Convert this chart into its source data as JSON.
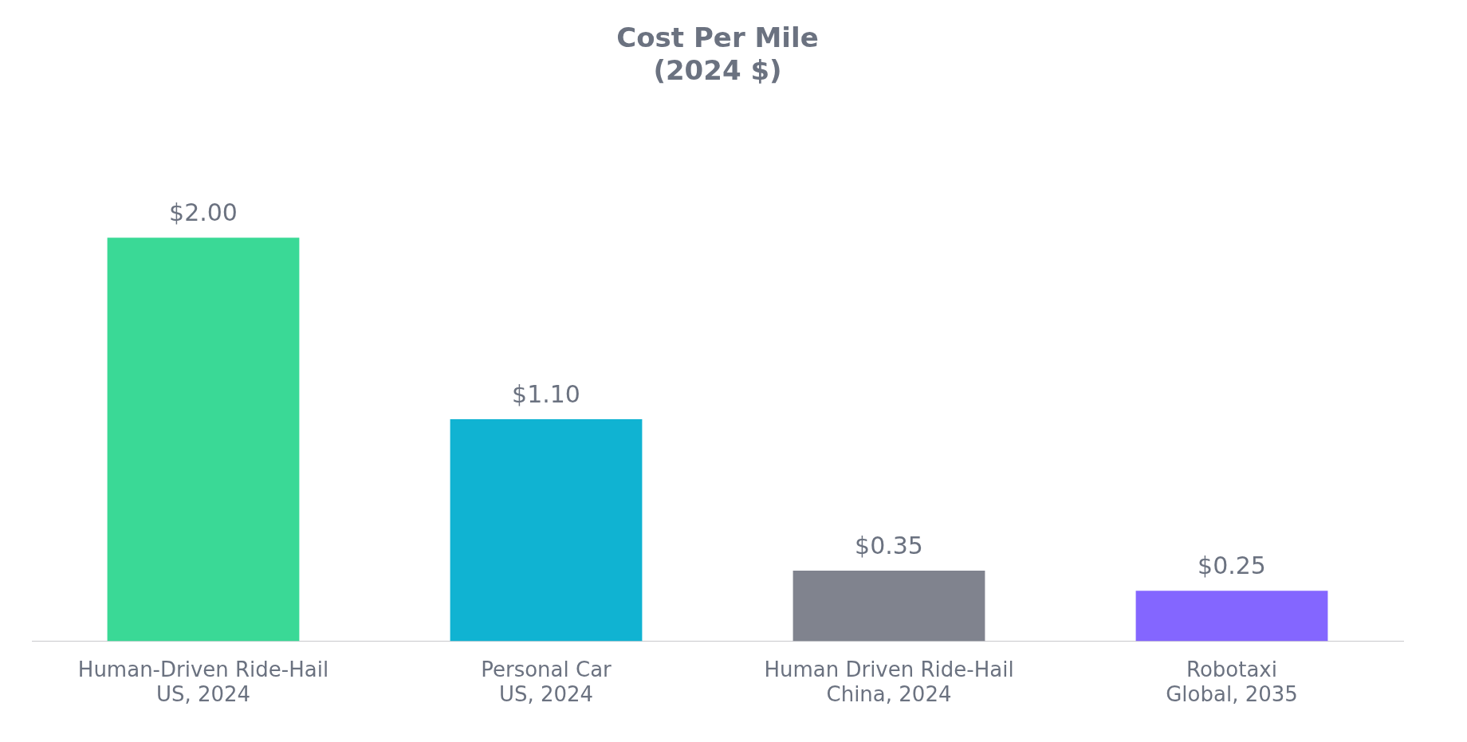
{
  "chart_data": {
    "type": "bar",
    "title": "Cost Per Mile\n(2024 $)",
    "categories": [
      "Human-Driven Ride-Hail\nUS, 2024",
      "Personal Car\nUS, 2024",
      "Human Driven Ride-Hail\nChina, 2024",
      "Robotaxi\nGlobal, 2035"
    ],
    "values": [
      2.0,
      1.1,
      0.35,
      0.25
    ],
    "colors": [
      "#3ad996",
      "#10b3d2",
      "#80838e",
      "#8466ff"
    ],
    "value_labels": [
      "$2.00",
      "$1.10",
      "$0.35",
      "$0.25"
    ],
    "grid": false,
    "legend": false
  }
}
